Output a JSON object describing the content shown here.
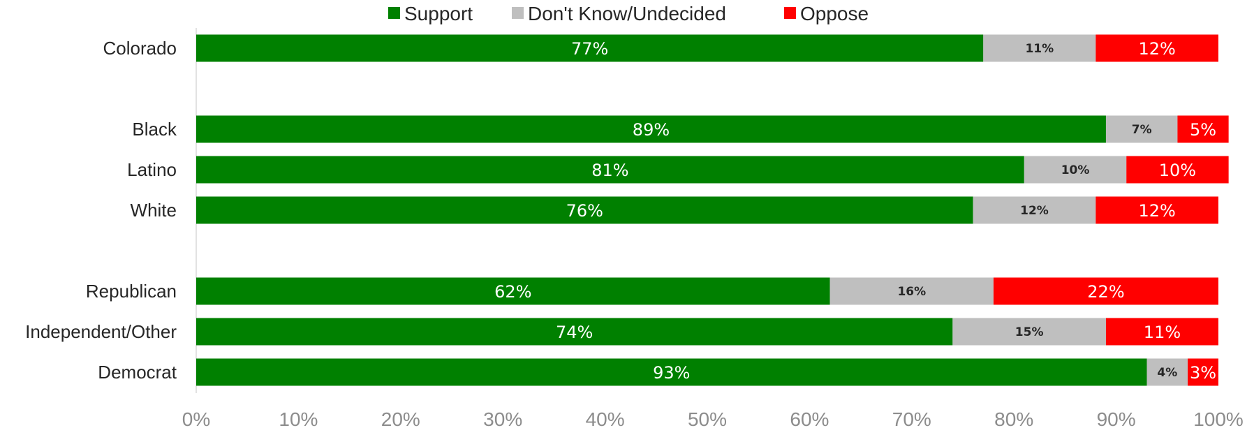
{
  "chart_data": {
    "type": "bar",
    "orientation": "horizontal",
    "stacked": true,
    "categories": [
      "Colorado",
      "Black",
      "Latino",
      "White",
      "Republican",
      "Independent/Other",
      "Democrat"
    ],
    "group_gap_after": [
      0,
      3
    ],
    "series": [
      {
        "name": "Support",
        "color": "#008000",
        "values": [
          77,
          89,
          81,
          76,
          62,
          74,
          93
        ],
        "labels": [
          "77%",
          "89%",
          "81%",
          "76%",
          "62%",
          "74%",
          "93%"
        ]
      },
      {
        "name": "Don't Know/Undecided",
        "color": "#bfbfbf",
        "values": [
          11,
          7,
          10,
          12,
          16,
          15,
          4
        ],
        "labels": [
          "11%",
          "7%",
          "10%",
          "12%",
          "16%",
          "15%",
          "4%"
        ]
      },
      {
        "name": "Oppose",
        "color": "#ff0000",
        "values": [
          12,
          5,
          10,
          12,
          22,
          11,
          3
        ],
        "labels": [
          "12%",
          "5%",
          "10%",
          "12%",
          "22%",
          "11%",
          "3%"
        ]
      }
    ],
    "xlim": [
      0,
      100
    ],
    "x_ticks": [
      "0%",
      "10%",
      "20%",
      "30%",
      "40%",
      "50%",
      "60%",
      "70%",
      "80%",
      "90%",
      "100%"
    ],
    "legend_position": "top",
    "grid": false
  }
}
